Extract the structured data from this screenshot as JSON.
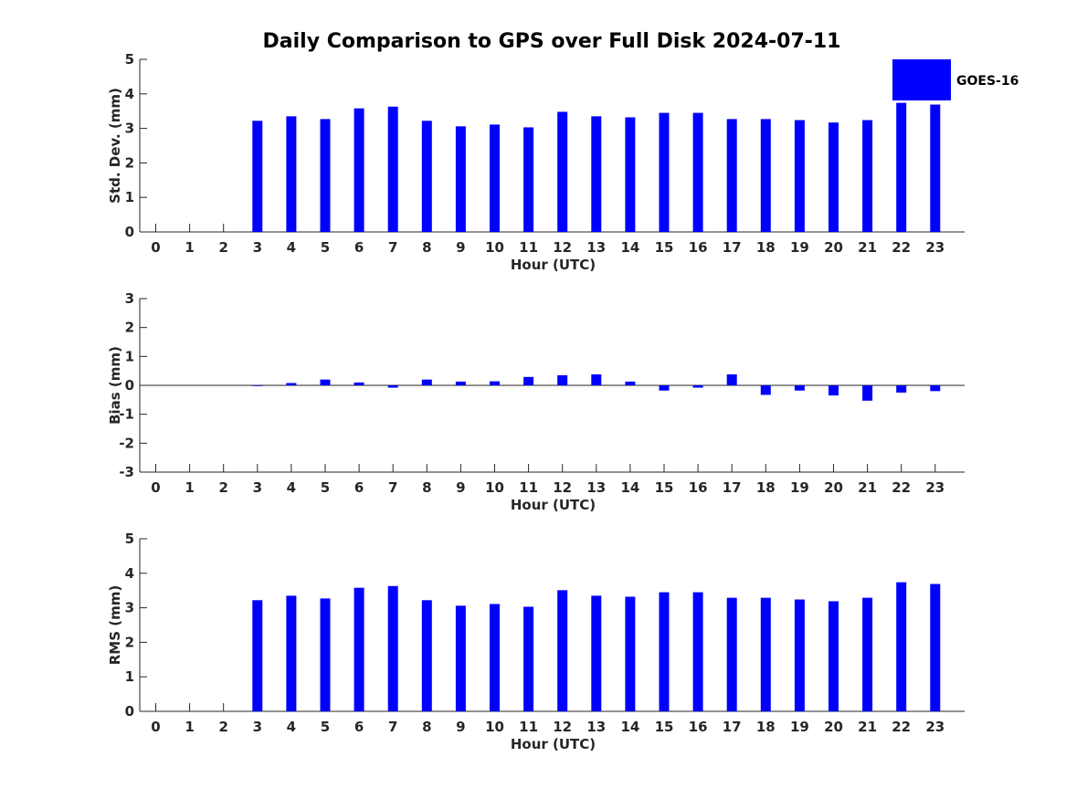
{
  "chart_data": [
    {
      "type": "bar",
      "title": "Daily Comparison to GPS over Full Disk 2024-07-11",
      "xlabel": "Hour (UTC)",
      "ylabel": "Std. Dev. (mm)",
      "ylim": [
        0,
        5
      ],
      "yticks": [
        "0",
        "1",
        "2",
        "3",
        "4",
        "5"
      ],
      "categories": [
        "0",
        "1",
        "2",
        "3",
        "4",
        "5",
        "6",
        "7",
        "8",
        "9",
        "10",
        "11",
        "12",
        "13",
        "14",
        "15",
        "16",
        "17",
        "18",
        "19",
        "20",
        "21",
        "22",
        "23"
      ],
      "series": [
        {
          "name": "GOES-16",
          "color": "#0000ff",
          "values": [
            null,
            null,
            null,
            3.22,
            3.35,
            3.27,
            3.58,
            3.63,
            3.22,
            3.06,
            3.11,
            3.03,
            3.48,
            3.35,
            3.32,
            3.45,
            3.45,
            3.27,
            3.27,
            3.24,
            3.17,
            3.24,
            3.74,
            3.69
          ]
        }
      ],
      "legend": {
        "labels": [
          "GOES-16"
        ],
        "position": "top-right"
      }
    },
    {
      "type": "bar",
      "xlabel": "Hour (UTC)",
      "ylabel": "Bias (mm)",
      "ylim": [
        -3,
        3
      ],
      "yticks": [
        "-3",
        "-2",
        "-1",
        "0",
        "1",
        "2",
        "3"
      ],
      "categories": [
        "0",
        "1",
        "2",
        "3",
        "4",
        "5",
        "6",
        "7",
        "8",
        "9",
        "10",
        "11",
        "12",
        "13",
        "14",
        "15",
        "16",
        "17",
        "18",
        "19",
        "20",
        "21",
        "22",
        "23"
      ],
      "series": [
        {
          "name": "GOES-16",
          "color": "#0000ff",
          "values": [
            null,
            null,
            null,
            -0.01,
            0.08,
            0.2,
            0.1,
            -0.08,
            0.2,
            0.13,
            0.14,
            0.29,
            0.35,
            0.38,
            0.13,
            -0.18,
            -0.08,
            0.38,
            -0.33,
            -0.18,
            -0.35,
            -0.53,
            -0.25,
            -0.2
          ]
        }
      ]
    },
    {
      "type": "bar",
      "xlabel": "Hour (UTC)",
      "ylabel": "RMS (mm)",
      "ylim": [
        0,
        5
      ],
      "yticks": [
        "0",
        "1",
        "2",
        "3",
        "4",
        "5"
      ],
      "categories": [
        "0",
        "1",
        "2",
        "3",
        "4",
        "5",
        "6",
        "7",
        "8",
        "9",
        "10",
        "11",
        "12",
        "13",
        "14",
        "15",
        "16",
        "17",
        "18",
        "19",
        "20",
        "21",
        "22",
        "23"
      ],
      "series": [
        {
          "name": "GOES-16",
          "color": "#0000ff",
          "values": [
            null,
            null,
            null,
            3.22,
            3.35,
            3.27,
            3.58,
            3.63,
            3.22,
            3.06,
            3.11,
            3.03,
            3.51,
            3.35,
            3.32,
            3.45,
            3.45,
            3.29,
            3.29,
            3.24,
            3.19,
            3.29,
            3.74,
            3.69
          ]
        }
      ]
    }
  ]
}
